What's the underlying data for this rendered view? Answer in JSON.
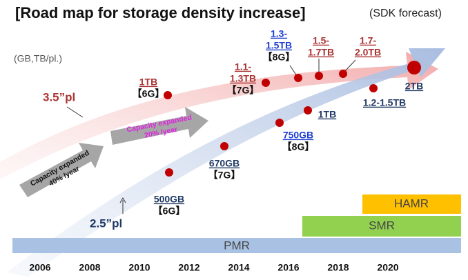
{
  "title": "[Road map for storage density increase]",
  "subtitle": "(SDK forecast)",
  "unit_note": "(GB,TB/pl.)",
  "track_35": "3.5”pl",
  "track_25": "2.5”pl",
  "growth_notes": [
    {
      "lines": [
        "Capacity expanded",
        "40% /year"
      ]
    },
    {
      "lines": [
        "Capacity expanded",
        "20% /year"
      ]
    }
  ],
  "labels_35": [
    {
      "lines": [
        "1TB",
        "【6G】"
      ]
    },
    {
      "lines": [
        "1.1-",
        "1.3TB",
        "【7G】"
      ]
    },
    {
      "lines": [
        "1.3-",
        "1.5TB",
        "【8G】"
      ]
    },
    {
      "lines": [
        "1.5-",
        "1.7TB"
      ]
    },
    {
      "lines": [
        "1.7-",
        "2.0TB"
      ]
    }
  ],
  "labels_25": [
    {
      "lines": [
        "500GB",
        "【6G】"
      ]
    },
    {
      "lines": [
        "670GB",
        "【7G】"
      ]
    },
    {
      "lines": [
        "750GB",
        "【8G】"
      ]
    },
    {
      "lines": [
        "1TB"
      ]
    },
    {
      "lines": [
        "1.2-1.5TB"
      ]
    },
    {
      "lines": [
        "2TB"
      ]
    }
  ],
  "years": [
    "2006",
    "2008",
    "2010",
    "2012",
    "2014",
    "2016",
    "2018",
    "2020"
  ],
  "technologies": [
    "PMR",
    "SMR",
    "HAMR"
  ]
}
